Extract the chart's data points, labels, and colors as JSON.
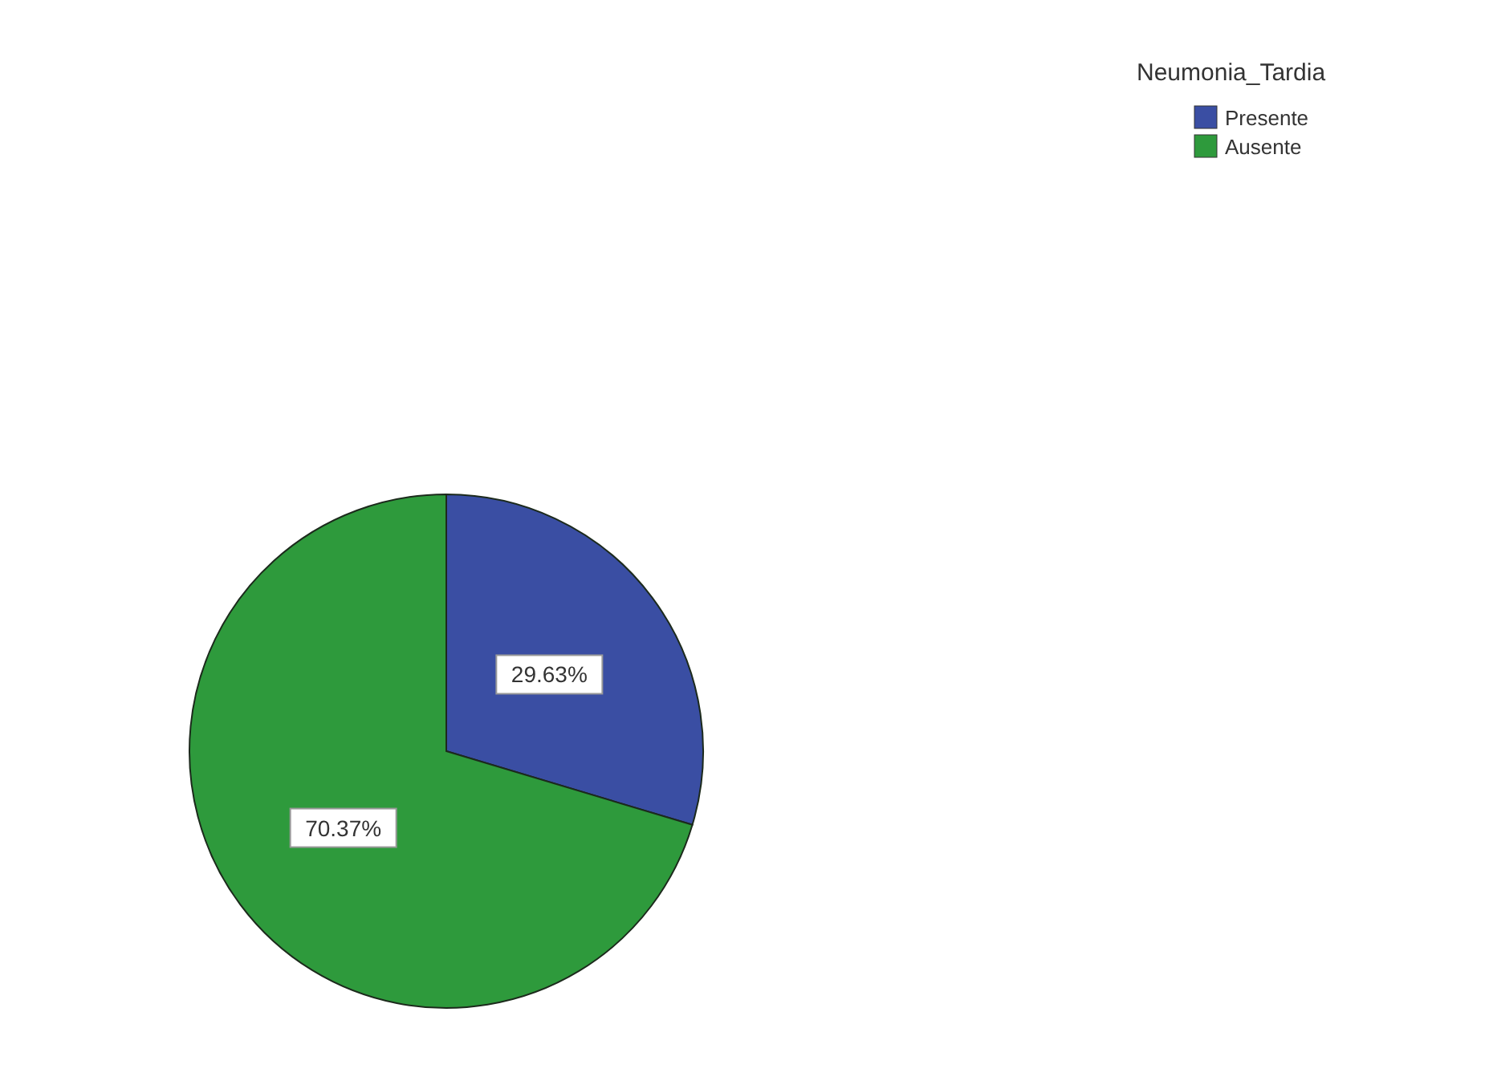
{
  "chart_data": {
    "type": "pie",
    "legend_title": "Neumonia_Tardia",
    "categories": [
      "Presente",
      "Ausente"
    ],
    "values": [
      29.63,
      70.37
    ],
    "colors": [
      "#3a4ea3",
      "#2e9a3c"
    ],
    "value_labels": [
      "29.63%",
      "70.37%"
    ],
    "legend": "top right"
  }
}
